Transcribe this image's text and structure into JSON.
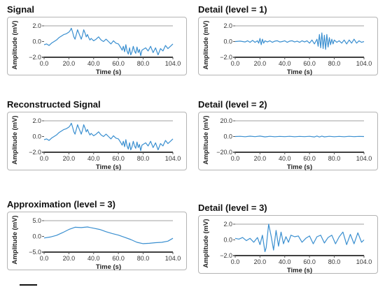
{
  "panels": [
    {
      "title": "Signal"
    },
    {
      "title": "Detail (level = 1)"
    },
    {
      "title": "Reconstructed Signal"
    },
    {
      "title": "Detail (level = 2)"
    },
    {
      "title": "Approximation (level = 3)"
    },
    {
      "title": "Detail (level = 3)"
    }
  ],
  "colors": {
    "line": "#3a8fd0",
    "axis": "#000000",
    "gridline": "#a0a0a0"
  },
  "chart_data": [
    {
      "type": "line",
      "title": "Signal",
      "xlabel": "Time (s)",
      "ylabel": "Amplitude (mV)",
      "xlim": [
        0,
        104
      ],
      "ylim": [
        -2,
        2
      ],
      "xticks": [
        "0.0",
        "20.0",
        "40.0",
        "60.0",
        "80.0",
        "104.0"
      ],
      "yticks": [
        "2.0",
        "0.0",
        "−2.0"
      ],
      "x": [
        0,
        2,
        4,
        6,
        8,
        10,
        12,
        14,
        16,
        18,
        20,
        21,
        22,
        23,
        24,
        25,
        26,
        27,
        28,
        30,
        31,
        32,
        33,
        34,
        35,
        36,
        37,
        38,
        40,
        42,
        44,
        46,
        48,
        50,
        52,
        54,
        56,
        58,
        60,
        62,
        63,
        64,
        65,
        66,
        67,
        68,
        69,
        70,
        71,
        72,
        73,
        74,
        75,
        76,
        77,
        78,
        79,
        80,
        82,
        84,
        86,
        88,
        90,
        92,
        94,
        96,
        98,
        100,
        102,
        104
      ],
      "y": [
        -0.4,
        -0.3,
        -0.5,
        -0.2,
        0.0,
        0.2,
        0.5,
        0.7,
        0.9,
        1.0,
        1.2,
        1.4,
        1.7,
        1.2,
        0.6,
        0.3,
        0.9,
        1.5,
        1.1,
        0.3,
        0.8,
        1.5,
        1.1,
        0.6,
        0.9,
        0.5,
        0.2,
        0.4,
        0.1,
        0.3,
        0.6,
        0.2,
        0.0,
        0.3,
        0.0,
        -0.3,
        0.1,
        -0.2,
        -0.3,
        -0.8,
        -1.1,
        -0.6,
        -1.3,
        -0.4,
        -1.2,
        -1.6,
        -0.8,
        -1.7,
        -1.3,
        -0.6,
        -1.2,
        -1.5,
        -0.7,
        -1.4,
        -1.0,
        -1.8,
        -1.1,
        -1.0,
        -0.8,
        -1.2,
        -0.6,
        -1.4,
        -0.8,
        -1.7,
        -0.9,
        -1.2,
        -0.5,
        -0.9,
        -0.6,
        -0.3
      ]
    },
    {
      "type": "line",
      "title": "Detail (level = 1)",
      "xlabel": "Time (s)",
      "ylabel": "Amplitude (mV)",
      "xlim": [
        0,
        104
      ],
      "ylim": [
        -2,
        2
      ],
      "xticks": [
        "0.0",
        "20.0",
        "40.0",
        "60.0",
        "80.0",
        "104.0"
      ],
      "yticks": [
        "2.0",
        "0.0",
        "−2.0"
      ],
      "x": [
        0,
        4,
        8,
        10,
        12,
        14,
        16,
        18,
        19,
        20,
        21,
        22,
        23,
        24,
        26,
        28,
        30,
        32,
        34,
        36,
        38,
        40,
        42,
        44,
        46,
        48,
        50,
        52,
        54,
        56,
        58,
        60,
        62,
        64,
        66,
        67,
        68,
        69,
        70,
        71,
        72,
        73,
        74,
        75,
        76,
        77,
        78,
        79,
        80,
        82,
        84,
        86,
        88,
        90,
        92,
        94,
        96,
        98,
        100,
        102,
        104
      ],
      "y": [
        0.0,
        0.05,
        -0.05,
        0.1,
        -0.1,
        0.15,
        -0.1,
        0.1,
        -0.2,
        0.4,
        -0.4,
        0.3,
        -0.2,
        0.1,
        -0.05,
        0.1,
        -0.1,
        0.05,
        0.1,
        -0.05,
        0.0,
        0.1,
        -0.1,
        0.05,
        0.1,
        -0.05,
        0.05,
        -0.1,
        0.1,
        -0.05,
        0.1,
        -0.2,
        0.2,
        -0.3,
        0.3,
        -0.6,
        0.9,
        -0.8,
        1.1,
        -0.9,
        0.8,
        -1.0,
        0.9,
        -0.7,
        0.5,
        -0.4,
        0.3,
        -0.3,
        0.2,
        -0.1,
        0.1,
        -0.2,
        0.2,
        -0.3,
        0.2,
        -0.2,
        0.3,
        -0.2,
        0.1,
        -0.1,
        0.0
      ]
    },
    {
      "type": "line",
      "title": "Reconstructed Signal",
      "xlabel": "Time (s)",
      "ylabel": "Amplitude (mV)",
      "xlim": [
        0,
        104
      ],
      "ylim": [
        -2,
        2
      ],
      "xticks": [
        "0.0",
        "20.0",
        "40.0",
        "60.0",
        "80.0",
        "104.0"
      ],
      "yticks": [
        "2.0",
        "0.0",
        "−2.0"
      ],
      "x": [
        0,
        2,
        4,
        6,
        8,
        10,
        12,
        14,
        16,
        18,
        20,
        21,
        22,
        23,
        24,
        25,
        26,
        27,
        28,
        30,
        31,
        32,
        33,
        34,
        35,
        36,
        37,
        38,
        40,
        42,
        44,
        46,
        48,
        50,
        52,
        54,
        56,
        58,
        60,
        62,
        63,
        64,
        65,
        66,
        67,
        68,
        69,
        70,
        71,
        72,
        73,
        74,
        75,
        76,
        77,
        78,
        79,
        80,
        82,
        84,
        86,
        88,
        90,
        92,
        94,
        96,
        98,
        100,
        102,
        104
      ],
      "y": [
        -0.4,
        -0.3,
        -0.5,
        -0.2,
        0.0,
        0.2,
        0.5,
        0.7,
        0.9,
        1.0,
        1.2,
        1.4,
        1.7,
        1.2,
        0.6,
        0.3,
        0.9,
        1.5,
        1.1,
        0.3,
        0.8,
        1.5,
        1.1,
        0.6,
        0.9,
        0.5,
        0.2,
        0.4,
        0.1,
        0.3,
        0.6,
        0.2,
        0.0,
        0.3,
        0.0,
        -0.3,
        0.1,
        -0.2,
        -0.3,
        -0.8,
        -1.1,
        -0.6,
        -1.3,
        -0.4,
        -1.2,
        -1.6,
        -0.8,
        -1.7,
        -1.3,
        -0.6,
        -1.2,
        -1.5,
        -0.7,
        -1.4,
        -1.0,
        -1.8,
        -1.1,
        -1.0,
        -0.8,
        -1.2,
        -0.6,
        -1.4,
        -0.8,
        -1.7,
        -0.9,
        -1.2,
        -0.5,
        -0.9,
        -0.6,
        -0.3
      ]
    },
    {
      "type": "line",
      "title": "Detail (level = 2)",
      "xlabel": "Time (s)",
      "ylabel": "Amplitude (mV)",
      "xlim": [
        0,
        104
      ],
      "ylim": [
        -20,
        20
      ],
      "xticks": [
        "0.0",
        "20.0",
        "40.0",
        "60.0",
        "80.0",
        "104.0"
      ],
      "yticks": [
        "20.0",
        "0.0",
        "−20.0"
      ],
      "x": [
        0,
        4,
        8,
        12,
        16,
        20,
        24,
        28,
        32,
        36,
        40,
        44,
        48,
        52,
        56,
        60,
        64,
        66,
        68,
        70,
        72,
        76,
        80,
        84,
        88,
        92,
        96,
        100,
        104
      ],
      "y": [
        0.0,
        0.3,
        -0.3,
        0.4,
        -0.2,
        0.5,
        -0.4,
        0.3,
        -0.3,
        0.2,
        -0.2,
        0.3,
        -0.3,
        0.2,
        -0.2,
        0.3,
        -0.5,
        0.6,
        -0.6,
        0.5,
        -0.4,
        0.3,
        -0.3,
        0.2,
        -0.3,
        0.3,
        -0.2,
        0.2,
        0.0
      ]
    },
    {
      "type": "line",
      "title": "Approximation (level = 3)",
      "xlabel": "Time (s)",
      "ylabel": "Amplitude (mV)",
      "xlim": [
        0,
        104
      ],
      "ylim": [
        -5,
        5
      ],
      "xticks": [
        "0.0",
        "20.0",
        "40.0",
        "60.0",
        "80.0",
        "104.0"
      ],
      "yticks": [
        "5.0",
        "0.0",
        "−5.0"
      ],
      "x": [
        0,
        5,
        10,
        15,
        20,
        25,
        30,
        35,
        40,
        45,
        50,
        55,
        60,
        65,
        70,
        75,
        80,
        85,
        90,
        95,
        100,
        104
      ],
      "y": [
        -0.5,
        -0.2,
        0.3,
        1.2,
        2.2,
        2.9,
        2.8,
        3.0,
        2.6,
        2.2,
        1.5,
        0.9,
        0.4,
        -0.3,
        -1.0,
        -1.9,
        -2.3,
        -2.2,
        -2.0,
        -1.9,
        -1.5,
        -0.6
      ]
    },
    {
      "type": "line",
      "title": "Detail (level = 3)",
      "xlabel": "Time (s)",
      "ylabel": "Amplitude (mV)",
      "xlim": [
        0,
        104
      ],
      "ylim": [
        -2,
        2
      ],
      "xticks": [
        "0.0",
        "20.0",
        "40.0",
        "60.0",
        "80.0",
        "104.0"
      ],
      "yticks": [
        "2.0",
        "0.0",
        "−2.0"
      ],
      "x": [
        0,
        3,
        6,
        9,
        12,
        15,
        18,
        20,
        22,
        24,
        25,
        27,
        29,
        31,
        33,
        35,
        37,
        39,
        41,
        43,
        45,
        48,
        51,
        54,
        57,
        60,
        63,
        66,
        69,
        72,
        75,
        78,
        81,
        84,
        87,
        90,
        93,
        96,
        99,
        102,
        104
      ],
      "y": [
        0.2,
        0.1,
        0.3,
        -0.1,
        0.2,
        -0.3,
        0.3,
        -0.6,
        0.6,
        -1.5,
        -1.0,
        2.0,
        0.5,
        -1.3,
        1.2,
        -0.8,
        1.0,
        -0.5,
        0.4,
        -0.3,
        0.6,
        0.4,
        0.5,
        -0.3,
        0.2,
        0.5,
        -0.5,
        0.4,
        0.6,
        -0.4,
        0.3,
        0.6,
        -0.5,
        0.4,
        1.0,
        -0.6,
        0.7,
        -0.5,
        0.9,
        -0.3,
        0.0
      ]
    }
  ]
}
